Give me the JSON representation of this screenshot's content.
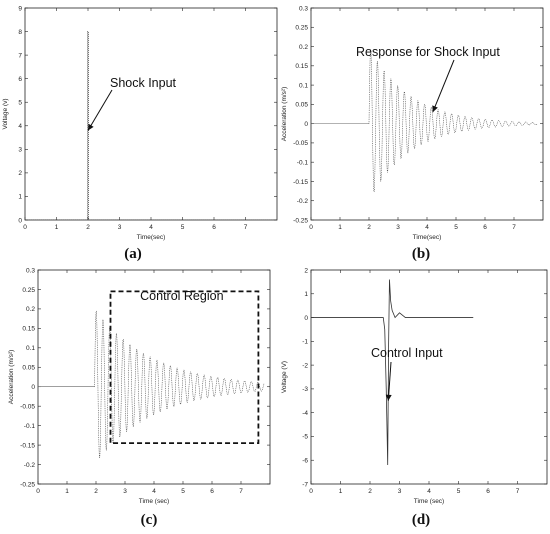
{
  "chart_data": [
    {
      "id": "a",
      "type": "line",
      "caption": "(a)",
      "xlabel": "Time(sec)",
      "ylabel": "Voltage (v)",
      "xlim": [
        0,
        8
      ],
      "ylim": [
        0,
        9
      ],
      "xticks": [
        0,
        1,
        2,
        3,
        4,
        5,
        6,
        7
      ],
      "yticks": [
        0,
        1,
        2,
        3,
        4,
        5,
        6,
        7,
        8,
        9
      ],
      "grid": false,
      "signal": "shock",
      "series": [
        {
          "x": [
            0.0,
            1.98,
            1.99,
            2.0,
            2.01,
            2.02,
            2.03,
            8.0
          ],
          "y": [
            0.0,
            0.0,
            8.0,
            8.0,
            8.0,
            0.0,
            0.0,
            0.0
          ]
        }
      ],
      "annotation": {
        "text": "Shock Input",
        "target": [
          2.0,
          3.8
        ]
      }
    },
    {
      "id": "b",
      "type": "line",
      "caption": "(b)",
      "xlabel": "Time(sec)",
      "ylabel": "Acceleration (m/s²)",
      "xlim": [
        0,
        8
      ],
      "ylim": [
        -0.25,
        0.3
      ],
      "xticks": [
        0,
        1,
        2,
        3,
        4,
        5,
        6,
        7
      ],
      "yticks": [
        -0.25,
        -0.2,
        -0.15,
        -0.1,
        -0.05,
        0,
        0.05,
        0.1,
        0.15,
        0.2,
        0.25,
        0.3
      ],
      "grid": false,
      "signal": "decay",
      "params": {
        "start": 2.0,
        "end": 7.8,
        "amplitude": 0.2,
        "decay": 0.72,
        "frequency": 4.3
      },
      "annotation": {
        "text": "Response for Shock Input",
        "target": [
          4.2,
          0.03
        ]
      }
    },
    {
      "id": "c",
      "type": "line",
      "caption": "(c)",
      "xlabel": "Time (sec)",
      "ylabel": "Acceleration (m/s²)",
      "xlim": [
        0,
        8
      ],
      "ylim": [
        -0.25,
        0.3
      ],
      "xticks": [
        0,
        1,
        2,
        3,
        4,
        5,
        6,
        7
      ],
      "yticks": [
        -0.25,
        -0.2,
        -0.15,
        -0.1,
        -0.05,
        0,
        0.05,
        0.1,
        0.15,
        0.2,
        0.25,
        0.3
      ],
      "grid": false,
      "signal": "decay",
      "params": {
        "start": 1.95,
        "end": 7.8,
        "amplitude": 0.2,
        "decay": 0.5,
        "frequency": 4.3
      },
      "region": {
        "label": "Control Region",
        "x": [
          2.5,
          7.6
        ],
        "y": [
          -0.145,
          0.245
        ]
      }
    },
    {
      "id": "d",
      "type": "line",
      "caption": "(d)",
      "xlabel": "Time (sec)",
      "ylabel": "Voltage (V)",
      "xlim": [
        0,
        8
      ],
      "ylim": [
        -7,
        2
      ],
      "xticks": [
        0,
        1,
        2,
        3,
        4,
        5,
        6,
        7
      ],
      "yticks": [
        -7,
        -6,
        -5,
        -4,
        -3,
        -2,
        -1,
        0,
        1,
        2
      ],
      "grid": false,
      "signal": "control",
      "series": [
        {
          "x": [
            0.0,
            2.45,
            2.5,
            2.55,
            2.6,
            2.63,
            2.66,
            2.7,
            2.75,
            2.85,
            3.0,
            3.2,
            3.5,
            5.5
          ],
          "y": [
            0.0,
            0.0,
            -0.5,
            -3.0,
            -6.2,
            -1.2,
            1.6,
            0.7,
            0.3,
            0.0,
            0.2,
            0.0,
            0.0,
            0.0
          ]
        }
      ],
      "annotation": {
        "text": "Control Input",
        "target": [
          2.62,
          -3.5
        ]
      }
    }
  ]
}
